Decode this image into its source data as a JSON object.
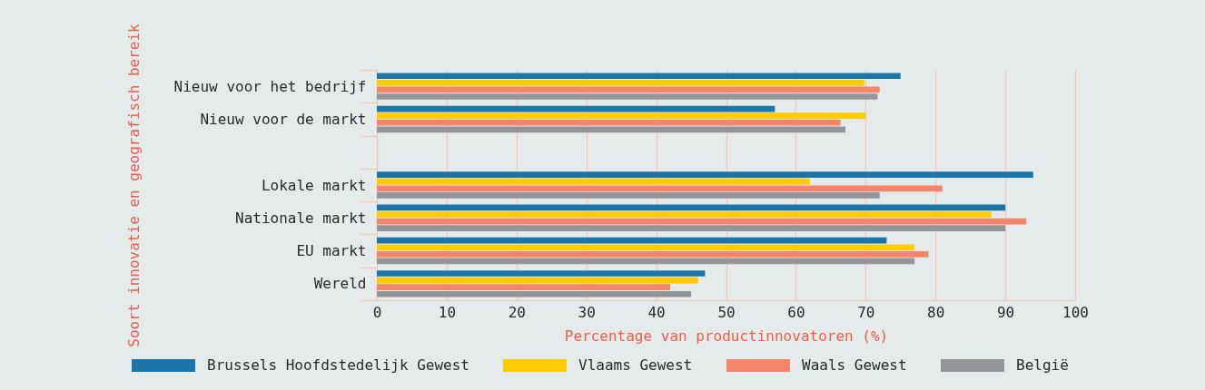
{
  "chart_data": {
    "type": "bar",
    "orientation": "horizontal",
    "categories": [
      "Nieuw voor het bedrijf",
      "Nieuw voor de markt",
      null,
      "Lokale markt",
      "Nationale markt",
      "EU markt",
      "Wereld"
    ],
    "series": [
      {
        "name": "Brussels Hoofdstedelijk Gewest",
        "color": "#1b75a8",
        "values": [
          75,
          57,
          null,
          94,
          90,
          73,
          47
        ]
      },
      {
        "name": "Vlaams Gewest",
        "color": "#ffcb05",
        "values": [
          69.8,
          70,
          null,
          62,
          88,
          77,
          46
        ]
      },
      {
        "name": "Waals Gewest",
        "color": "#f4846a",
        "values": [
          72,
          66.4,
          null,
          81,
          93,
          79,
          42
        ]
      },
      {
        "name": "België",
        "color": "#939598",
        "values": [
          71.7,
          67.1,
          null,
          72,
          90,
          77,
          45
        ]
      }
    ],
    "xlabel": "Percentage van productinnovatoren (%)",
    "ylabel": "Soort innovatie en geografisch bereik",
    "xlim": [
      0,
      100
    ],
    "xticks": [
      0,
      10,
      20,
      30,
      40,
      50,
      60,
      70,
      80,
      90,
      100
    ],
    "grid": "x",
    "legend": "bottom"
  }
}
